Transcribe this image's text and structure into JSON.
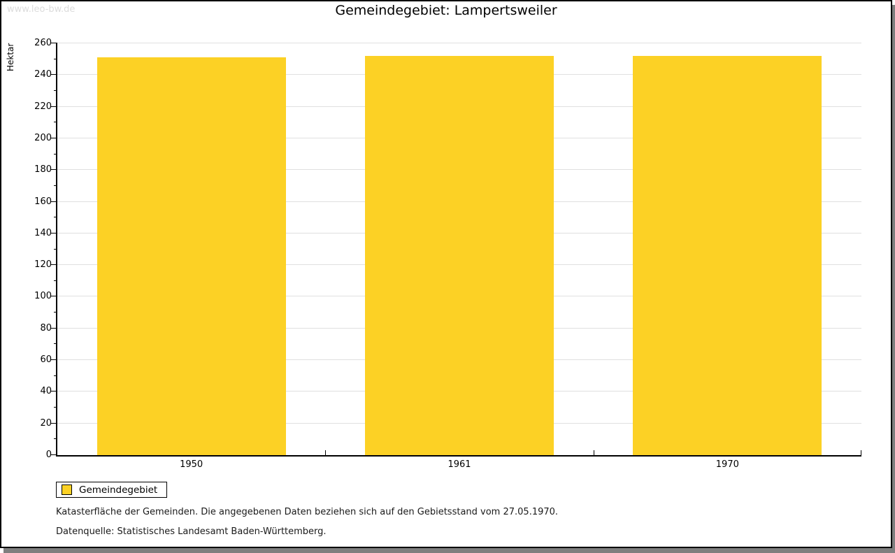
{
  "page": {
    "watermark": "www.leo-bw.de",
    "notes": [
      "Katasterfläche der Gemeinden. Die angegebenen Daten beziehen sich auf den Gebietsstand vom 27.05.1970.",
      "Datenquelle: Statistisches Landesamt Baden-Württemberg."
    ]
  },
  "chart_data": {
    "type": "bar",
    "title": "Gemeindegebiet: Lampertsweiler",
    "categories": [
      "1950",
      "1961",
      "1970"
    ],
    "series": [
      {
        "name": "Gemeindegebiet",
        "values": [
          251,
          252,
          252
        ],
        "color": "#fcd125"
      }
    ],
    "xlabel": "",
    "ylabel": "Hektar",
    "ylim": [
      0,
      260
    ],
    "ytick_major": 20,
    "ytick_minor": 10,
    "grid": "horizontal-major",
    "grid_color": "#e0e0e0",
    "legend_position": "bottom-left"
  }
}
